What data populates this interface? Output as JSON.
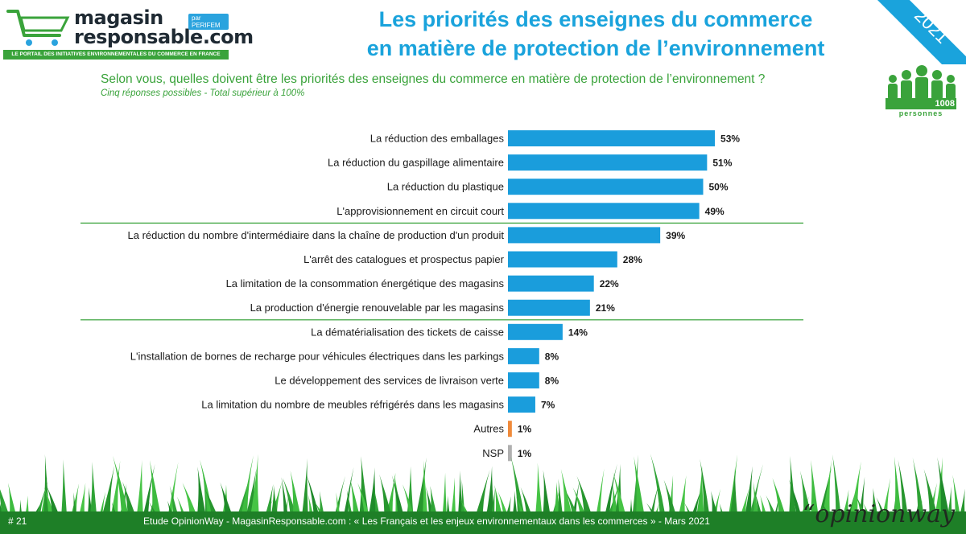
{
  "logo": {
    "line1": "magasin",
    "line2": "responsable.com",
    "badge": "par PERIFEM",
    "tagline": "LE PORTAIL DES INITIATIVES ENVIRONNEMENTALES DU COMMERCE EN FRANCE"
  },
  "header": {
    "title_line1": "Les priorités des enseignes du commerce",
    "title_line2": "en matière de protection de l’environnement",
    "year": "2021"
  },
  "sample": {
    "count": "1008",
    "label": "personnes"
  },
  "question": "Selon vous, quelles doivent être les priorités des enseignes du commerce en matière de protection de l’environnement ?",
  "note": "Cinq réponses possibles - Total supérieur à 100%",
  "colors": {
    "brand_blue": "#1aa3dc",
    "brand_green": "#3aa33b",
    "bar_blue": "#1a9ddc",
    "bar_other": "#f08a3a",
    "bar_nsp": "#b0b0b0"
  },
  "chart_data": {
    "type": "bar",
    "orientation": "horizontal",
    "categories": [
      "La réduction des emballages",
      "La réduction du gaspillage alimentaire",
      "La réduction du plastique",
      "L'approvisionnement en circuit court",
      "La réduction du nombre d'intermédiaire dans la chaîne de production d'un produit",
      "L'arrêt des catalogues et prospectus papier",
      "La limitation de la consommation énergétique des magasins",
      "La production d'énergie renouvelable par les magasins",
      "La dématérialisation des tickets de caisse",
      "L'installation de bornes de recharge pour véhicules électriques dans les parkings",
      "Le développement des services de livraison verte",
      "La limitation du nombre de meubles réfrigérés dans les magasins",
      "Autres",
      "NSP"
    ],
    "values": [
      53,
      51,
      50,
      49,
      39,
      28,
      22,
      21,
      14,
      8,
      8,
      7,
      1,
      1
    ],
    "value_labels": [
      "53%",
      "51%",
      "50%",
      "49%",
      "39%",
      "28%",
      "22%",
      "21%",
      "14%",
      "8%",
      "8%",
      "7%",
      "1%",
      "1%"
    ],
    "bar_colors": [
      "#1a9ddc",
      "#1a9ddc",
      "#1a9ddc",
      "#1a9ddc",
      "#1a9ddc",
      "#1a9ddc",
      "#1a9ddc",
      "#1a9ddc",
      "#1a9ddc",
      "#1a9ddc",
      "#1a9ddc",
      "#1a9ddc",
      "#f08a3a",
      "#b0b0b0"
    ],
    "group_separators_after_index": [
      3,
      7
    ],
    "xlim": [
      0,
      100
    ],
    "unit": "%"
  },
  "footer": {
    "slide_number": "# 21",
    "source": "Etude OpinionWay - MagasinResponsable.com : « Les Français et les enjeux environnementaux dans les commerces » - Mars 2021",
    "brand": "“opinionway"
  }
}
